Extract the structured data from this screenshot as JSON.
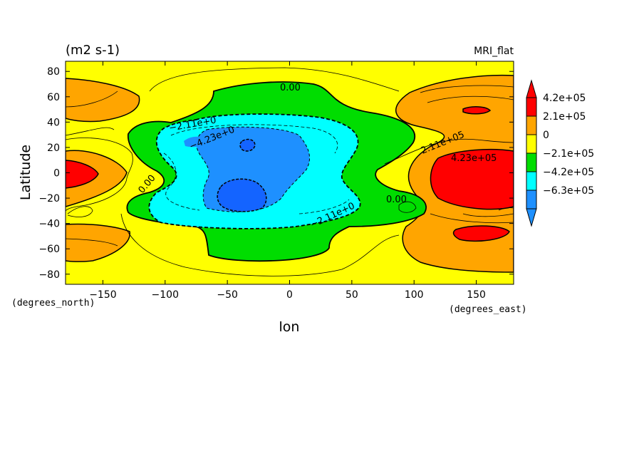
{
  "chart_data": {
    "type": "heatmap",
    "title": "(m2 s-1)",
    "model_label": "MRI_flat",
    "xlabel": "lon",
    "ylabel": "Latitude",
    "x_units": "(degrees_east)",
    "y_units": "(degrees_north)",
    "xlim": [
      -180,
      180
    ],
    "ylim": [
      -88,
      88
    ],
    "x_ticks": [
      -150,
      -100,
      -50,
      0,
      50,
      100,
      150
    ],
    "y_ticks": [
      -80,
      -60,
      -40,
      -20,
      0,
      20,
      40,
      60,
      80
    ],
    "contour_levels": [
      -630000,
      -420000,
      -210000,
      0,
      210000,
      420000
    ],
    "colorbar": {
      "labels": [
        "4.2e+05",
        "2.1e+05",
        "0",
        "−2.1e+05",
        "−4.2e+05",
        "−6.3e+05"
      ],
      "colors": [
        "#ff0000",
        "#ffa500",
        "#ffff00",
        "#00dd00",
        "#00ffff",
        "#1e90ff"
      ]
    },
    "contour_labels": [
      "0.00",
      "0.00",
      "0.00",
      "−2.11e+0",
      "−4.23e+0",
      "−2.11e+0",
      "2.11e+05",
      "4.23e+05"
    ],
    "grid": false
  }
}
